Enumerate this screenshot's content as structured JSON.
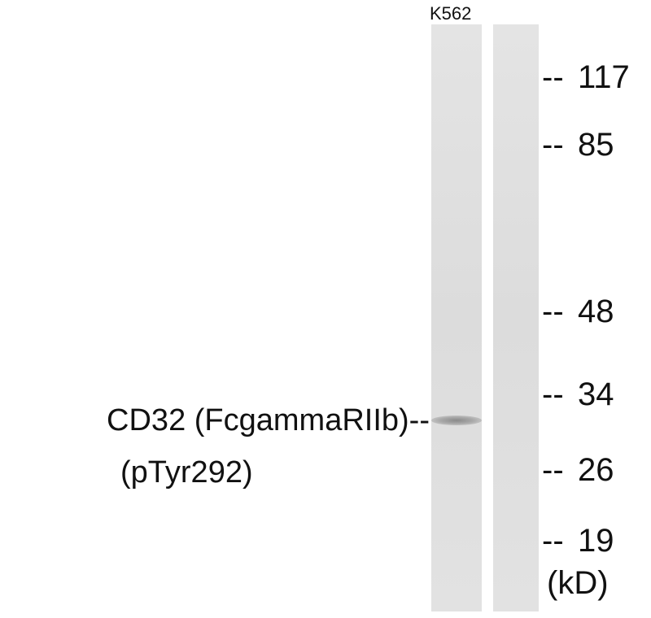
{
  "lane_labels": [
    "K562"
  ],
  "protein_label": {
    "line1": "CD32 (FcgammaRIIb)--",
    "line2": "(pTyr292)"
  },
  "marker_dash": "--",
  "markers": [
    "117",
    "85",
    "48",
    "34",
    "26",
    "19"
  ],
  "unit": "(kD)"
}
